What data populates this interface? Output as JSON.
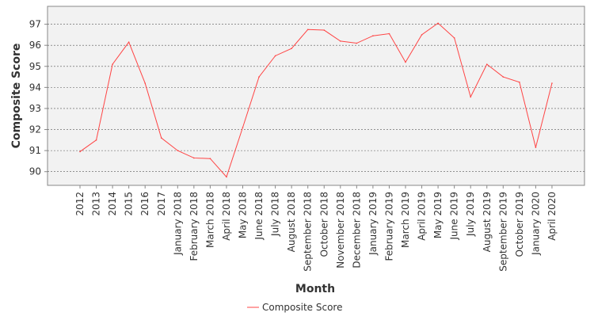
{
  "chart_data": {
    "type": "line",
    "xlabel": "Month",
    "ylabel": "Composite Score",
    "ylim": [
      89.35,
      97.85
    ],
    "yticks": [
      90,
      91,
      92,
      93,
      94,
      95,
      96,
      97
    ],
    "grid": "horizontal dashed",
    "legend_position": "bottom",
    "categories": [
      "2012",
      "2013",
      "2014",
      "2015",
      "2016",
      "2017",
      "January 2018",
      "February 2018",
      "March 2018",
      "April 2018",
      "May 2018",
      "June 2018",
      "July 2018",
      "August 2018",
      "September 2018",
      "October 2018",
      "November 2018",
      "December 2018",
      "January 2019",
      "February 2019",
      "March 2019",
      "April 2019",
      "May 2019",
      "June 2019",
      "July 2019",
      "August 2019",
      "September 2019",
      "October 2019",
      "January 2020",
      "April 2020"
    ],
    "series": [
      {
        "name": "Composite Score",
        "color": "#ff4444",
        "values": [
          90.95,
          91.5,
          95.1,
          96.15,
          94.2,
          91.6,
          91.0,
          90.65,
          90.62,
          89.75,
          92.1,
          94.5,
          95.5,
          95.85,
          96.75,
          96.72,
          96.2,
          96.1,
          96.45,
          96.55,
          95.2,
          96.5,
          97.05,
          96.35,
          93.55,
          95.1,
          94.5,
          94.25,
          91.15,
          94.2
        ]
      }
    ]
  }
}
